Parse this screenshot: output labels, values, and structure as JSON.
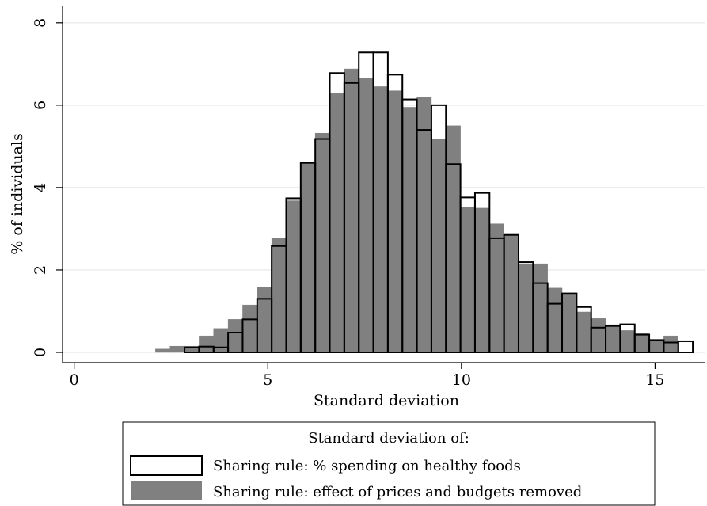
{
  "chart_data": {
    "type": "bar",
    "title": "",
    "xlabel": "Standard deviation",
    "ylabel": "% of individuals",
    "xlim": [
      -0.3,
      16.3
    ],
    "ylim": [
      -0.25,
      8.4
    ],
    "xticks": [
      0,
      5,
      10,
      15
    ],
    "yticks": [
      0,
      2,
      4,
      6,
      8
    ],
    "grid": "horizontal",
    "legend_position": "bottom-center",
    "legend_title": "Standard deviation of:",
    "series": [
      {
        "name": "Sharing rule: % spending on healthy foods",
        "style": "outline",
        "color": "#000000",
        "bin_start": 2.85,
        "bin_width": 0.375,
        "values": [
          0.12,
          0.14,
          0.12,
          0.48,
          0.8,
          1.3,
          2.58,
          3.74,
          4.6,
          5.18,
          6.78,
          6.54,
          7.28,
          7.28,
          6.74,
          6.14,
          5.4,
          6.0,
          4.57,
          3.76,
          3.87,
          2.77,
          2.85,
          2.19,
          1.68,
          1.18,
          1.43,
          1.1,
          0.6,
          0.64,
          0.68,
          0.43,
          0.3,
          0.24,
          0.27
        ]
      },
      {
        "name": "Sharing rule: effect of prices and budgets removed",
        "style": "filled",
        "color": "#808080",
        "bin_start": 2.1,
        "bin_width": 0.375,
        "values": [
          0.08,
          0.15,
          0.15,
          0.4,
          0.58,
          0.8,
          1.15,
          1.58,
          2.78,
          3.68,
          4.58,
          5.32,
          6.28,
          6.88,
          6.65,
          6.45,
          6.35,
          5.95,
          6.2,
          5.18,
          5.5,
          3.52,
          3.5,
          3.12,
          2.89,
          2.15,
          2.15,
          1.56,
          1.38,
          0.98,
          0.82,
          0.67,
          0.53,
          0.47,
          0.27,
          0.4
        ]
      }
    ]
  }
}
